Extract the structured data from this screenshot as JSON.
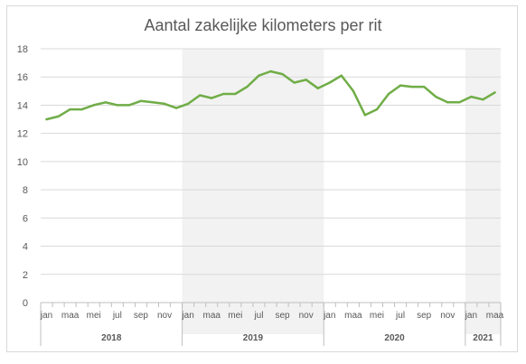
{
  "chart_data": {
    "type": "line",
    "title": "Aantal zakelijke kilometers per rit",
    "xlabel": "",
    "ylabel": "",
    "ylim": [
      0,
      18
    ],
    "yticks": [
      0,
      2,
      4,
      6,
      8,
      10,
      12,
      14,
      16,
      18
    ],
    "grid": "horizontal",
    "legend": "none",
    "line_color": "#70ad47",
    "shade_color": "#f2f2f2",
    "month_labels": [
      "jan",
      "",
      "maa",
      "",
      "mei",
      "",
      "jul",
      "",
      "sep",
      "",
      "nov",
      "",
      "jan",
      "",
      "maa",
      "",
      "mei",
      "",
      "jul",
      "",
      "sep",
      "",
      "nov",
      "",
      "jan",
      "",
      "maa",
      "",
      "mei",
      "",
      "jul",
      "",
      "sep",
      "",
      "nov",
      "",
      "jan",
      "",
      "maa"
    ],
    "years": [
      {
        "label": "2018",
        "shaded": false,
        "count": 12
      },
      {
        "label": "2019",
        "shaded": true,
        "count": 12
      },
      {
        "label": "2020",
        "shaded": false,
        "count": 12
      },
      {
        "label": "2021",
        "shaded": true,
        "count": 3
      }
    ],
    "series": [
      {
        "values": [
          13.0,
          13.2,
          13.7,
          13.7,
          14.0,
          14.2,
          14.0,
          14.0,
          14.3,
          14.2,
          14.1,
          13.8,
          14.1,
          14.7,
          14.5,
          14.8,
          14.8,
          15.3,
          16.1,
          16.4,
          16.2,
          15.6,
          15.8,
          15.2,
          15.6,
          16.1,
          15.0,
          13.3,
          13.7,
          14.8,
          15.4,
          15.3,
          15.3,
          14.6,
          14.2,
          14.2,
          14.6,
          14.4,
          14.9
        ]
      }
    ]
  }
}
